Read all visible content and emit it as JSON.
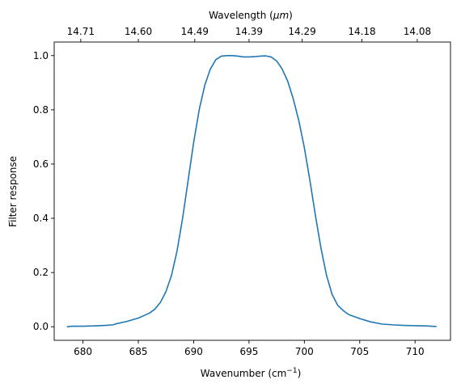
{
  "chart_data": {
    "type": "line",
    "title": "",
    "xlabel": "Wavenumber (cm",
    "xlabel_sup": "−1",
    "xlabel_end": ")",
    "ylabel": "Filter response",
    "top_xlabel": "Wavelength (",
    "top_xlabel_unit": "μm",
    "top_xlabel_end": ")",
    "xlim": [
      677.4,
      713.2
    ],
    "ylim": [
      -0.05,
      1.05
    ],
    "xticks": [
      680,
      685,
      690,
      695,
      700,
      705,
      710
    ],
    "xtick_labels": [
      "680",
      "685",
      "690",
      "695",
      "700",
      "705",
      "710"
    ],
    "yticks": [
      0.0,
      0.2,
      0.4,
      0.6,
      0.8,
      1.0
    ],
    "ytick_labels": [
      "0.0",
      "0.2",
      "0.4",
      "0.6",
      "0.8",
      "1.0"
    ],
    "top_ticks": [
      {
        "label": "14.71",
        "x": 679.8
      },
      {
        "label": "14.60",
        "x": 685.0
      },
      {
        "label": "14.49",
        "x": 690.1
      },
      {
        "label": "14.39",
        "x": 695.0
      },
      {
        "label": "14.29",
        "x": 699.8
      },
      {
        "label": "14.18",
        "x": 705.2
      },
      {
        "label": "14.08",
        "x": 710.2
      }
    ],
    "grid": false,
    "series": [
      {
        "color": "#1f77b4",
        "points": [
          [
            678.6,
            0.0
          ],
          [
            679.0,
            0.002
          ],
          [
            680.0,
            0.002
          ],
          [
            681.0,
            0.003
          ],
          [
            682.0,
            0.005
          ],
          [
            682.7,
            0.007
          ],
          [
            683.0,
            0.011
          ],
          [
            684.0,
            0.02
          ],
          [
            685.0,
            0.032
          ],
          [
            686.0,
            0.05
          ],
          [
            686.5,
            0.065
          ],
          [
            687.0,
            0.09
          ],
          [
            687.5,
            0.13
          ],
          [
            688.0,
            0.19
          ],
          [
            688.5,
            0.28
          ],
          [
            689.0,
            0.4
          ],
          [
            689.5,
            0.54
          ],
          [
            690.0,
            0.68
          ],
          [
            690.5,
            0.8
          ],
          [
            691.0,
            0.89
          ],
          [
            691.5,
            0.95
          ],
          [
            692.0,
            0.985
          ],
          [
            692.5,
            0.998
          ],
          [
            693.0,
            1.0
          ],
          [
            693.5,
            1.0
          ],
          [
            694.0,
            0.998
          ],
          [
            694.5,
            0.995
          ],
          [
            695.0,
            0.995
          ],
          [
            695.5,
            0.996
          ],
          [
            696.0,
            0.998
          ],
          [
            696.5,
            0.999
          ],
          [
            697.0,
            0.995
          ],
          [
            697.5,
            0.98
          ],
          [
            698.0,
            0.95
          ],
          [
            698.5,
            0.905
          ],
          [
            699.0,
            0.84
          ],
          [
            699.5,
            0.76
          ],
          [
            700.0,
            0.66
          ],
          [
            700.5,
            0.54
          ],
          [
            701.0,
            0.41
          ],
          [
            701.5,
            0.29
          ],
          [
            702.0,
            0.19
          ],
          [
            702.5,
            0.12
          ],
          [
            703.0,
            0.08
          ],
          [
            703.5,
            0.06
          ],
          [
            704.0,
            0.045
          ],
          [
            705.0,
            0.03
          ],
          [
            706.0,
            0.018
          ],
          [
            707.0,
            0.01
          ],
          [
            708.0,
            0.007
          ],
          [
            709.0,
            0.005
          ],
          [
            710.0,
            0.004
          ],
          [
            711.0,
            0.003
          ],
          [
            711.9,
            0.001
          ]
        ]
      }
    ]
  }
}
